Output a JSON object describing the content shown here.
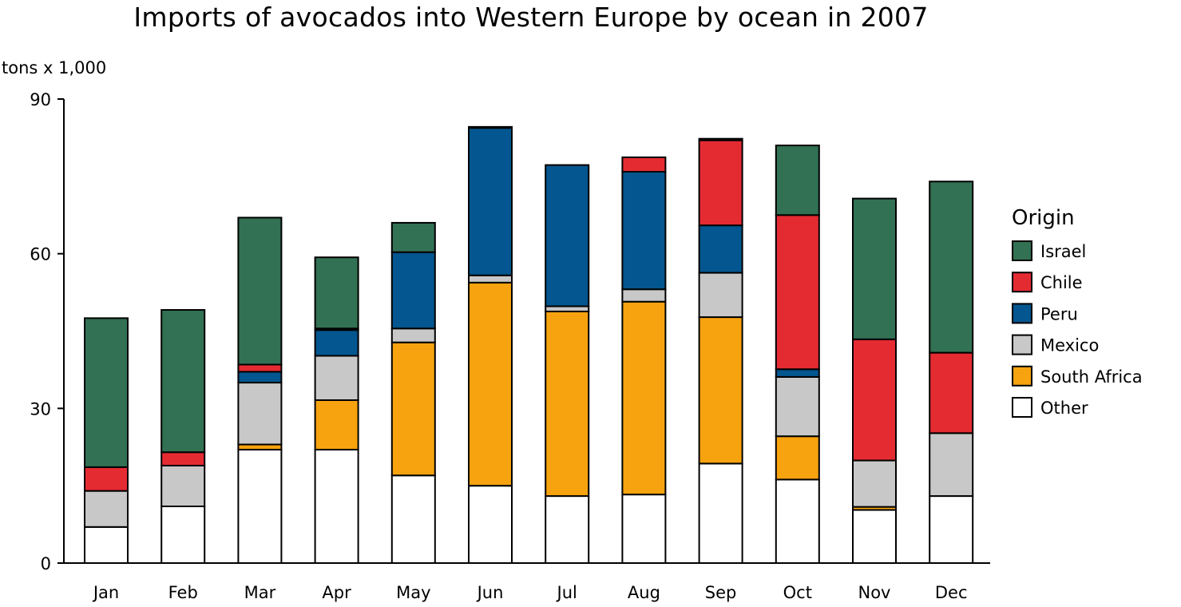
{
  "chart_data": {
    "type": "bar",
    "stacked": true,
    "title": "Imports of avocados into Western Europe by ocean in 2007",
    "ylabel": "tons x 1,000",
    "xlabel": "",
    "ylim": [
      0,
      90
    ],
    "yticks": [
      0,
      30,
      60,
      90
    ],
    "grid": false,
    "legend_title": "Origin",
    "legend_position": "right",
    "categories": [
      "Jan",
      "Feb",
      "Mar",
      "Apr",
      "May",
      "Jun",
      "Jul",
      "Aug",
      "Sep",
      "Oct",
      "Nov",
      "Dec"
    ],
    "series": [
      {
        "name": "Other",
        "color": "#ffffff",
        "values": [
          7,
          11,
          22,
          22,
          17,
          15,
          13,
          13.3,
          19.3,
          16.2,
          10.3,
          13
        ]
      },
      {
        "name": "South Africa",
        "color": "#f6a30f",
        "values": [
          0,
          0,
          1,
          9.6,
          25.8,
          39.4,
          35.8,
          37.4,
          28.4,
          8.4,
          0.6,
          0
        ]
      },
      {
        "name": "Mexico",
        "color": "#c8c8c8",
        "values": [
          7,
          7.9,
          12,
          8.6,
          2.7,
          1.4,
          1,
          2.4,
          8.6,
          11.5,
          9,
          12.2
        ]
      },
      {
        "name": "Peru",
        "color": "#03568f",
        "values": [
          0,
          0,
          2.1,
          5,
          14.8,
          28.6,
          27.4,
          22.8,
          9.2,
          1.5,
          0,
          0
        ]
      },
      {
        "name": "Chile",
        "color": "#e52b32",
        "values": [
          4.6,
          2.6,
          1.4,
          0.3,
          0,
          0.1,
          0,
          2.8,
          16.5,
          29.9,
          23.5,
          15.6
        ]
      },
      {
        "name": "Israel",
        "color": "#327154",
        "values": [
          28.9,
          27.6,
          28.5,
          13.8,
          5.7,
          0.1,
          0,
          0,
          0.3,
          13.5,
          27.3,
          33.2
        ]
      }
    ],
    "legend_order": [
      "Israel",
      "Chile",
      "Peru",
      "Mexico",
      "South Africa",
      "Other"
    ]
  }
}
